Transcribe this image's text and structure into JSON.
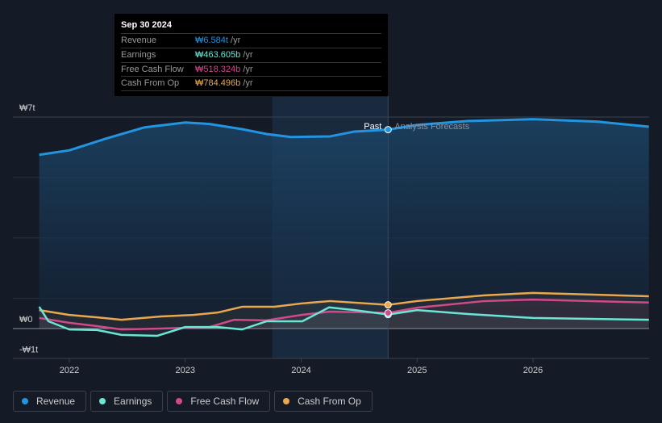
{
  "chart_data": {
    "type": "line",
    "title": "",
    "xlabel": "",
    "ylabel": "",
    "xlim": [
      2021.51,
      2026.99
    ],
    "ylim": [
      -1,
      7
    ],
    "x_ticks": [
      "2022",
      "2023",
      "2024",
      "2025",
      "2026"
    ],
    "x_tick_values": [
      2022,
      2023,
      2024,
      2025,
      2026
    ],
    "y_ticks": [
      "₩7t",
      "₩0",
      "-₩1t"
    ],
    "y_tick_values": [
      7,
      0,
      -1
    ],
    "unit": "trillion KRW",
    "divider_x": 2024.75,
    "past_highlight_start": 2023.75,
    "past_label": "Past",
    "forecast_label": "Analysts Forecasts",
    "series": [
      {
        "name": "Revenue",
        "color": "#2394df",
        "points": [
          [
            2021.74,
            5.75
          ],
          [
            2022,
            5.9
          ],
          [
            2022.31,
            6.28
          ],
          [
            2022.65,
            6.66
          ],
          [
            2023,
            6.82
          ],
          [
            2023.21,
            6.77
          ],
          [
            2023.49,
            6.6
          ],
          [
            2023.7,
            6.44
          ],
          [
            2023.91,
            6.34
          ],
          [
            2024.25,
            6.36
          ],
          [
            2024.46,
            6.52
          ],
          [
            2024.75,
            6.584
          ],
          [
            2025,
            6.74
          ],
          [
            2025.44,
            6.87
          ],
          [
            2026,
            6.93
          ],
          [
            2026.55,
            6.85
          ],
          [
            2027,
            6.68
          ]
        ]
      },
      {
        "name": "Earnings",
        "color": "#6ce6d4",
        "points": [
          [
            2021.74,
            0.72
          ],
          [
            2021.82,
            0.24
          ],
          [
            2022,
            -0.03
          ],
          [
            2022.24,
            -0.05
          ],
          [
            2022.45,
            -0.21
          ],
          [
            2022.76,
            -0.24
          ],
          [
            2023,
            0.05
          ],
          [
            2023.28,
            0.05
          ],
          [
            2023.49,
            -0.03
          ],
          [
            2023.7,
            0.24
          ],
          [
            2024.01,
            0.24
          ],
          [
            2024.24,
            0.7
          ],
          [
            2024.46,
            0.61
          ],
          [
            2024.75,
            0.4636
          ],
          [
            2025,
            0.61
          ],
          [
            2025.44,
            0.48
          ],
          [
            2026,
            0.35
          ],
          [
            2027,
            0.29
          ]
        ]
      },
      {
        "name": "Free Cash Flow",
        "color": "#d0498a",
        "points": [
          [
            2021.74,
            0.35
          ],
          [
            2022,
            0.19
          ],
          [
            2022.24,
            0.08
          ],
          [
            2022.45,
            -0.03
          ],
          [
            2022.79,
            0
          ],
          [
            2023.21,
            0.05
          ],
          [
            2023.42,
            0.29
          ],
          [
            2023.7,
            0.27
          ],
          [
            2024,
            0.45
          ],
          [
            2024.25,
            0.56
          ],
          [
            2024.75,
            0.5183
          ],
          [
            2025,
            0.69
          ],
          [
            2025.58,
            0.91
          ],
          [
            2026,
            0.96
          ],
          [
            2027,
            0.86
          ]
        ]
      },
      {
        "name": "Cash From Op",
        "color": "#e9a84f",
        "points": [
          [
            2021.74,
            0.61
          ],
          [
            2022,
            0.45
          ],
          [
            2022.24,
            0.37
          ],
          [
            2022.45,
            0.29
          ],
          [
            2022.79,
            0.4
          ],
          [
            2023.07,
            0.45
          ],
          [
            2023.28,
            0.53
          ],
          [
            2023.49,
            0.72
          ],
          [
            2023.77,
            0.72
          ],
          [
            2024,
            0.83
          ],
          [
            2024.25,
            0.91
          ],
          [
            2024.75,
            0.7845
          ],
          [
            2025,
            0.91
          ],
          [
            2025.58,
            1.1
          ],
          [
            2026,
            1.18
          ],
          [
            2027,
            1.07
          ]
        ]
      }
    ]
  },
  "tooltip": {
    "date": "Sep 30 2024",
    "rows": [
      {
        "label": "Revenue",
        "value": "₩6.584t",
        "unit": "/yr",
        "color": "#2394df"
      },
      {
        "label": "Earnings",
        "value": "₩463.605b",
        "unit": "/yr",
        "color": "#6ce6d4"
      },
      {
        "label": "Free Cash Flow",
        "value": "₩518.324b",
        "unit": "/yr",
        "color": "#d0498a"
      },
      {
        "label": "Cash From Op",
        "value": "₩784.496b",
        "unit": "/yr",
        "color": "#e9a84f"
      }
    ]
  },
  "legend": [
    {
      "label": "Revenue",
      "color": "#2394df"
    },
    {
      "label": "Earnings",
      "color": "#6ce6d4"
    },
    {
      "label": "Free Cash Flow",
      "color": "#d0498a"
    },
    {
      "label": "Cash From Op",
      "color": "#e9a84f"
    }
  ]
}
